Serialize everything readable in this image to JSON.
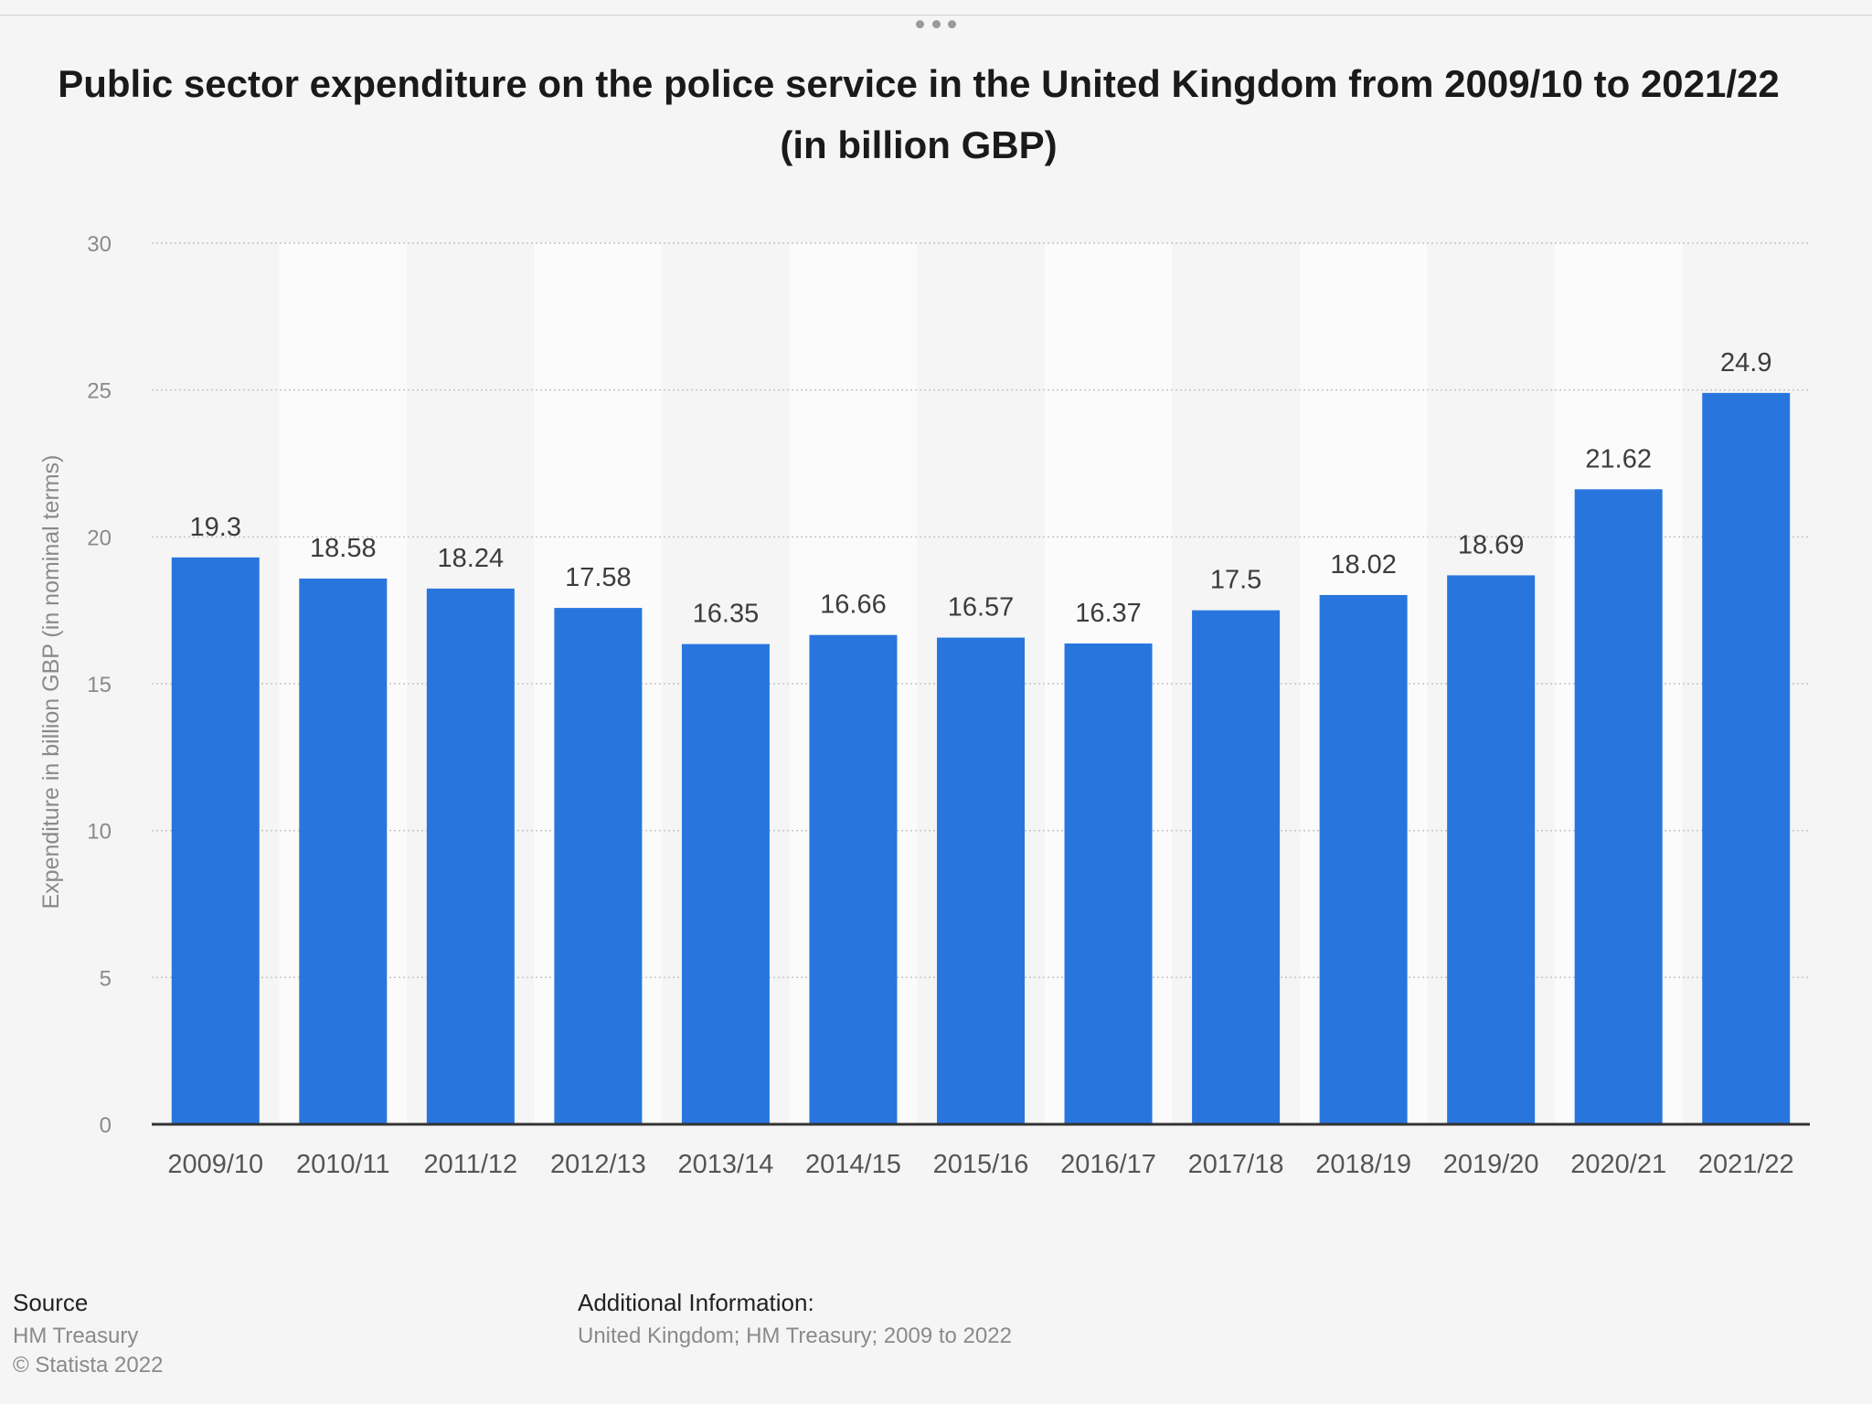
{
  "chart_data": {
    "type": "bar",
    "title": "Public sector expenditure on the police service in the United Kingdom from 2009/10 to 2021/22 (in billion GBP)",
    "categories": [
      "2009/10",
      "2010/11",
      "2011/12",
      "2012/13",
      "2013/14",
      "2014/15",
      "2015/16",
      "2016/17",
      "2017/18",
      "2018/19",
      "2019/20",
      "2020/21",
      "2021/22"
    ],
    "values": [
      19.3,
      18.58,
      18.24,
      17.58,
      16.35,
      16.66,
      16.57,
      16.37,
      17.5,
      18.02,
      18.69,
      21.62,
      24.9
    ],
    "value_labels": [
      "19.3",
      "18.58",
      "18.24",
      "17.58",
      "16.35",
      "16.66",
      "16.57",
      "16.37",
      "17.5",
      "18.02",
      "18.69",
      "21.62",
      "24.9"
    ],
    "xlabel": "",
    "ylabel": "Expenditure in billion GBP (in nominal terms)",
    "ylim": [
      0,
      30
    ],
    "yticks": [
      "0",
      "5",
      "10",
      "15",
      "20",
      "25",
      "30"
    ],
    "grid": true,
    "bar_color": "#2876dd"
  },
  "footer": {
    "source_heading": "Source",
    "source_name": "HM Treasury",
    "copyright": "© Statista 2022",
    "additional_heading": "Additional Information:",
    "additional_text": "United Kingdom; HM Treasury; 2009 to 2022"
  }
}
